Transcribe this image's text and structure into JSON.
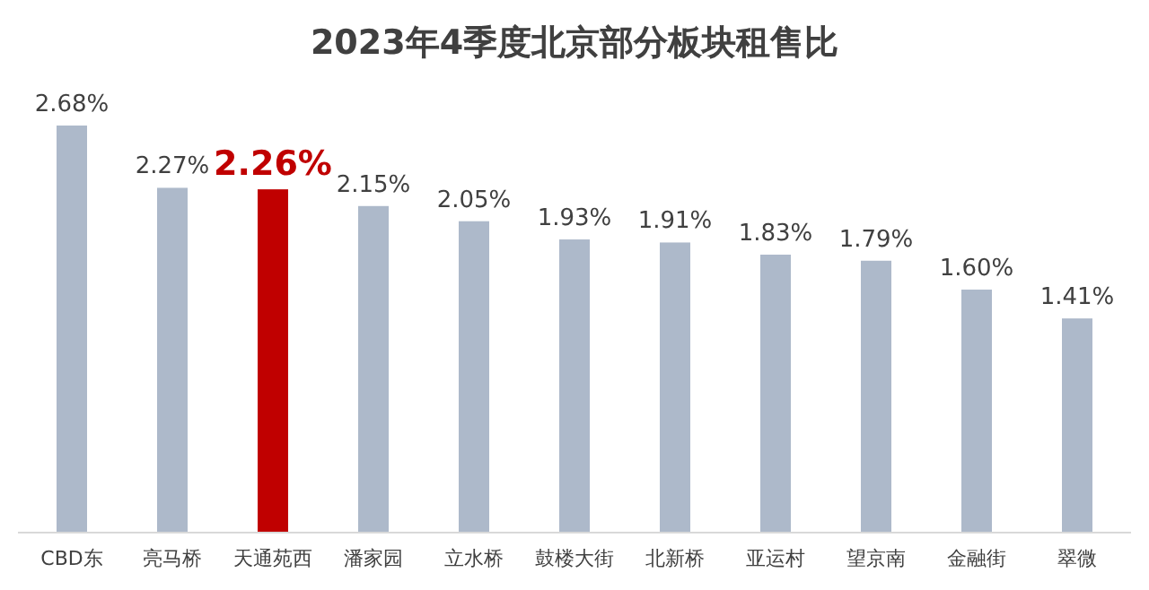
{
  "chart_data": {
    "type": "bar",
    "title": "2023年4季度北京部分板块租售比",
    "categories": [
      "CBD东",
      "亮马桥",
      "天通苑西",
      "潘家园",
      "立水桥",
      "鼓楼大街",
      "北新桥",
      "亚运村",
      "望京南",
      "金融街",
      "翠微"
    ],
    "values": [
      2.68,
      2.27,
      2.26,
      2.15,
      2.05,
      1.93,
      1.91,
      1.83,
      1.79,
      1.6,
      1.41
    ],
    "value_labels": [
      "2.68%",
      "2.27%",
      "2.26%",
      "2.15%",
      "2.05%",
      "1.93%",
      "1.91%",
      "1.83%",
      "1.79%",
      "1.60%",
      "1.41%"
    ],
    "colors": [
      "#adb9ca",
      "#adb9ca",
      "#c00000",
      "#adb9ca",
      "#adb9ca",
      "#adb9ca",
      "#adb9ca",
      "#adb9ca",
      "#adb9ca",
      "#adb9ca",
      "#adb9ca"
    ]
  }
}
